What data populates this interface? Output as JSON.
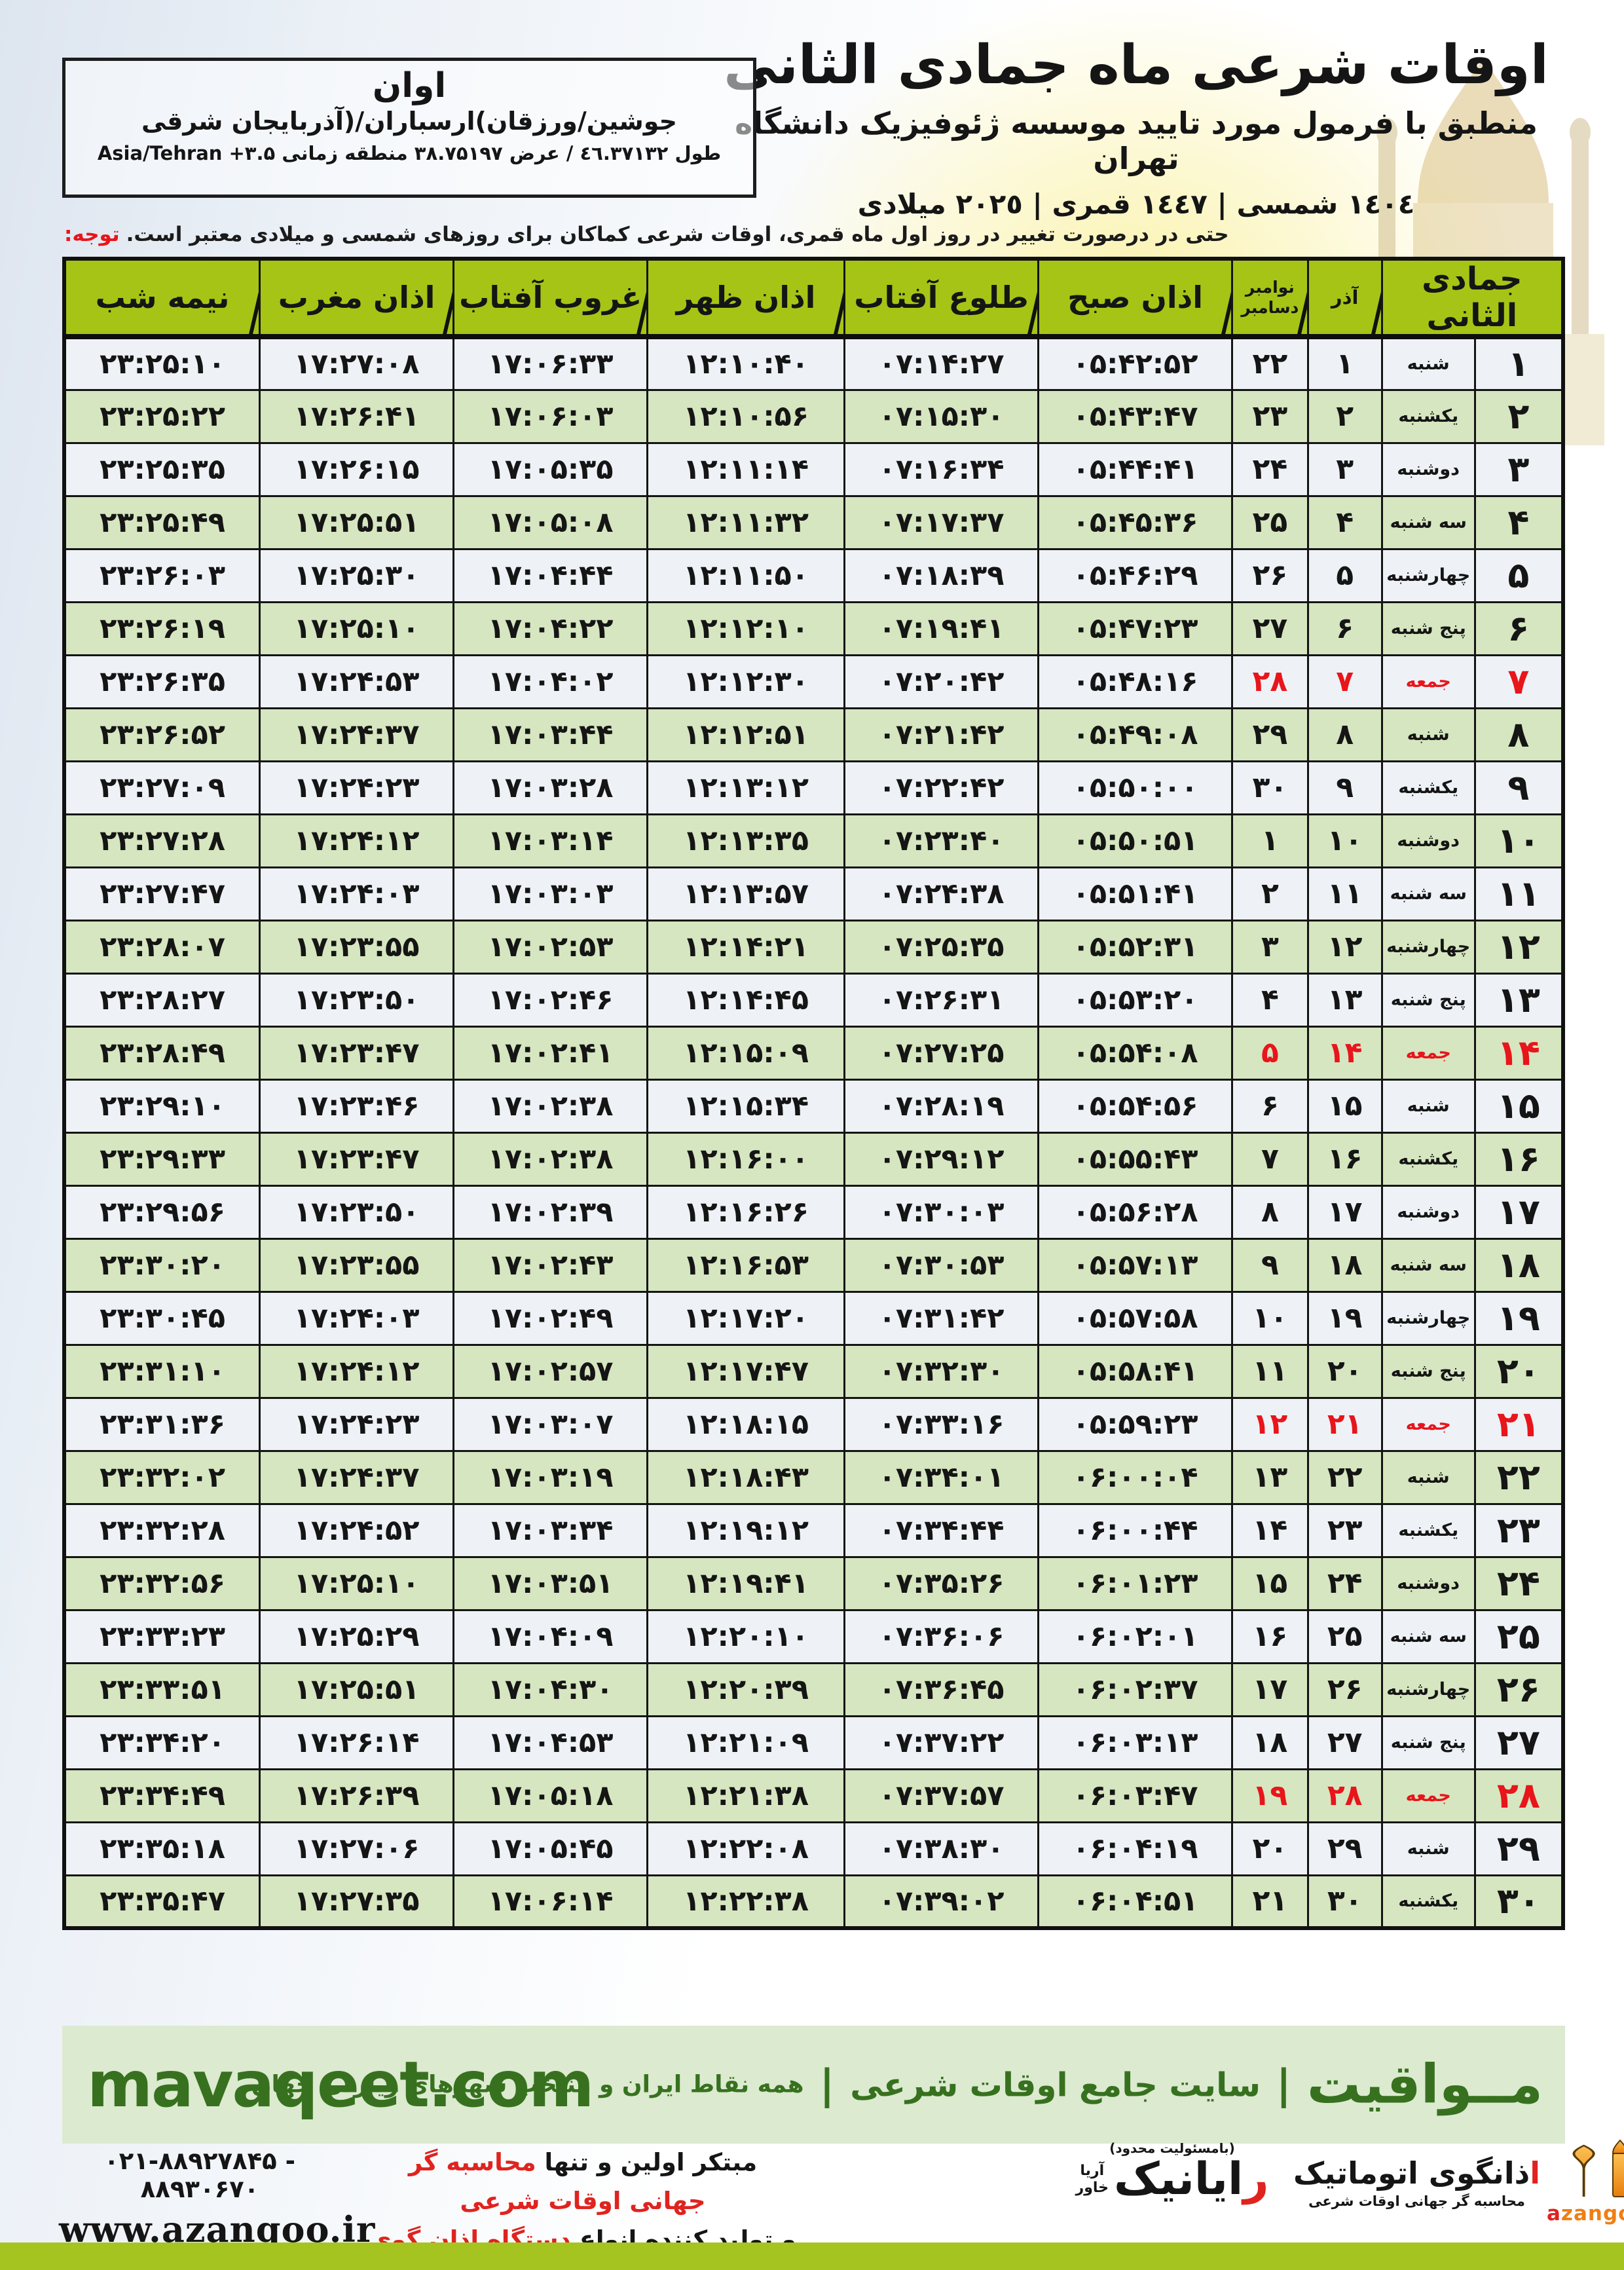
{
  "header": {
    "title": "اوقات شرعی ماه جمادی الثانی",
    "subtitle": "منطبق با فرمول مورد تایید موسسه ژئوفیزیک دانشگاه تهران",
    "calendar_line": "١٤٠٤ شمسی | ١٤٤٧ قمری | ٢٠٢٥ میلادی"
  },
  "location": {
    "city": "اوان",
    "region": "جوشین/ورزقان)ارسباران/(آذربایجان شرقی",
    "coordinates": "طول ٤٦.٣٧١٣٢ / عرض ۳۸.۷۵۱۹۷ منطقه زمانی Asia/Tehran +۳.۵"
  },
  "notice": {
    "label": "توجه:",
    "text": "حتی در درصورت تغییر در روز اول ماه قمری، اوقات شرعی کماکان برای روزهای شمسی و میلادی معتبر است."
  },
  "table": {
    "headers": {
      "month": "جمادی الثانی",
      "azar": "آذر",
      "miladi_top": "نوامبر",
      "miladi_bottom": "دسامبر",
      "fajr": "اذان صبح",
      "sunrise": "طلوع آفتاب",
      "dhuhr": "اذان ظهر",
      "sunset": "غروب آفتاب",
      "maghrib": "اذان مغرب",
      "midnight": "نیمه شب"
    },
    "rows": [
      {
        "day": "۱",
        "weekday": "شنبه",
        "azar": "۱",
        "miladi": "۲۲",
        "fajr": "۰۵:۴۲:۵۲",
        "sunrise": "۰۷:۱۴:۲۷",
        "dhuhr": "۱۲:۱۰:۴۰",
        "sunset": "۱۷:۰۶:۳۳",
        "maghrib": "۱۷:۲۷:۰۸",
        "midnight": "۲۳:۲۵:۱۰",
        "friday": false
      },
      {
        "day": "۲",
        "weekday": "یکشنبه",
        "azar": "۲",
        "miladi": "۲۳",
        "fajr": "۰۵:۴۳:۴۷",
        "sunrise": "۰۷:۱۵:۳۰",
        "dhuhr": "۱۲:۱۰:۵۶",
        "sunset": "۱۷:۰۶:۰۳",
        "maghrib": "۱۷:۲۶:۴۱",
        "midnight": "۲۳:۲۵:۲۲",
        "friday": false
      },
      {
        "day": "۳",
        "weekday": "دوشنبه",
        "azar": "۳",
        "miladi": "۲۴",
        "fajr": "۰۵:۴۴:۴۱",
        "sunrise": "۰۷:۱۶:۳۴",
        "dhuhr": "۱۲:۱۱:۱۴",
        "sunset": "۱۷:۰۵:۳۵",
        "maghrib": "۱۷:۲۶:۱۵",
        "midnight": "۲۳:۲۵:۳۵",
        "friday": false
      },
      {
        "day": "۴",
        "weekday": "سه شنبه",
        "azar": "۴",
        "miladi": "۲۵",
        "fajr": "۰۵:۴۵:۳۶",
        "sunrise": "۰۷:۱۷:۳۷",
        "dhuhr": "۱۲:۱۱:۳۲",
        "sunset": "۱۷:۰۵:۰۸",
        "maghrib": "۱۷:۲۵:۵۱",
        "midnight": "۲۳:۲۵:۴۹",
        "friday": false
      },
      {
        "day": "۵",
        "weekday": "چهارشنبه",
        "azar": "۵",
        "miladi": "۲۶",
        "fajr": "۰۵:۴۶:۲۹",
        "sunrise": "۰۷:۱۸:۳۹",
        "dhuhr": "۱۲:۱۱:۵۰",
        "sunset": "۱۷:۰۴:۴۴",
        "maghrib": "۱۷:۲۵:۳۰",
        "midnight": "۲۳:۲۶:۰۳",
        "friday": false
      },
      {
        "day": "۶",
        "weekday": "پنج شنبه",
        "azar": "۶",
        "miladi": "۲۷",
        "fajr": "۰۵:۴۷:۲۳",
        "sunrise": "۰۷:۱۹:۴۱",
        "dhuhr": "۱۲:۱۲:۱۰",
        "sunset": "۱۷:۰۴:۲۲",
        "maghrib": "۱۷:۲۵:۱۰",
        "midnight": "۲۳:۲۶:۱۹",
        "friday": false
      },
      {
        "day": "۷",
        "weekday": "جمعه",
        "azar": "۷",
        "miladi": "۲۸",
        "fajr": "۰۵:۴۸:۱۶",
        "sunrise": "۰۷:۲۰:۴۲",
        "dhuhr": "۱۲:۱۲:۳۰",
        "sunset": "۱۷:۰۴:۰۲",
        "maghrib": "۱۷:۲۴:۵۳",
        "midnight": "۲۳:۲۶:۳۵",
        "friday": true
      },
      {
        "day": "۸",
        "weekday": "شنبه",
        "azar": "۸",
        "miladi": "۲۹",
        "fajr": "۰۵:۴۹:۰۸",
        "sunrise": "۰۷:۲۱:۴۲",
        "dhuhr": "۱۲:۱۲:۵۱",
        "sunset": "۱۷:۰۳:۴۴",
        "maghrib": "۱۷:۲۴:۳۷",
        "midnight": "۲۳:۲۶:۵۲",
        "friday": false
      },
      {
        "day": "۹",
        "weekday": "یکشنبه",
        "azar": "۹",
        "miladi": "۳۰",
        "fajr": "۰۵:۵۰:۰۰",
        "sunrise": "۰۷:۲۲:۴۲",
        "dhuhr": "۱۲:۱۳:۱۲",
        "sunset": "۱۷:۰۳:۲۸",
        "maghrib": "۱۷:۲۴:۲۳",
        "midnight": "۲۳:۲۷:۰۹",
        "friday": false
      },
      {
        "day": "۱۰",
        "weekday": "دوشنبه",
        "azar": "۱۰",
        "miladi": "۱",
        "fajr": "۰۵:۵۰:۵۱",
        "sunrise": "۰۷:۲۳:۴۰",
        "dhuhr": "۱۲:۱۳:۳۵",
        "sunset": "۱۷:۰۳:۱۴",
        "maghrib": "۱۷:۲۴:۱۲",
        "midnight": "۲۳:۲۷:۲۸",
        "friday": false
      },
      {
        "day": "۱۱",
        "weekday": "سه شنبه",
        "azar": "۱۱",
        "miladi": "۲",
        "fajr": "۰۵:۵۱:۴۱",
        "sunrise": "۰۷:۲۴:۳۸",
        "dhuhr": "۱۲:۱۳:۵۷",
        "sunset": "۱۷:۰۳:۰۳",
        "maghrib": "۱۷:۲۴:۰۳",
        "midnight": "۲۳:۲۷:۴۷",
        "friday": false
      },
      {
        "day": "۱۲",
        "weekday": "چهارشنبه",
        "azar": "۱۲",
        "miladi": "۳",
        "fajr": "۰۵:۵۲:۳۱",
        "sunrise": "۰۷:۲۵:۳۵",
        "dhuhr": "۱۲:۱۴:۲۱",
        "sunset": "۱۷:۰۲:۵۳",
        "maghrib": "۱۷:۲۳:۵۵",
        "midnight": "۲۳:۲۸:۰۷",
        "friday": false
      },
      {
        "day": "۱۳",
        "weekday": "پنج شنبه",
        "azar": "۱۳",
        "miladi": "۴",
        "fajr": "۰۵:۵۳:۲۰",
        "sunrise": "۰۷:۲۶:۳۱",
        "dhuhr": "۱۲:۱۴:۴۵",
        "sunset": "۱۷:۰۲:۴۶",
        "maghrib": "۱۷:۲۳:۵۰",
        "midnight": "۲۳:۲۸:۲۷",
        "friday": false
      },
      {
        "day": "۱۴",
        "weekday": "جمعه",
        "azar": "۱۴",
        "miladi": "۵",
        "fajr": "۰۵:۵۴:۰۸",
        "sunrise": "۰۷:۲۷:۲۵",
        "dhuhr": "۱۲:۱۵:۰۹",
        "sunset": "۱۷:۰۲:۴۱",
        "maghrib": "۱۷:۲۳:۴۷",
        "midnight": "۲۳:۲۸:۴۹",
        "friday": true
      },
      {
        "day": "۱۵",
        "weekday": "شنبه",
        "azar": "۱۵",
        "miladi": "۶",
        "fajr": "۰۵:۵۴:۵۶",
        "sunrise": "۰۷:۲۸:۱۹",
        "dhuhr": "۱۲:۱۵:۳۴",
        "sunset": "۱۷:۰۲:۳۸",
        "maghrib": "۱۷:۲۳:۴۶",
        "midnight": "۲۳:۲۹:۱۰",
        "friday": false
      },
      {
        "day": "۱۶",
        "weekday": "یکشنبه",
        "azar": "۱۶",
        "miladi": "۷",
        "fajr": "۰۵:۵۵:۴۳",
        "sunrise": "۰۷:۲۹:۱۲",
        "dhuhr": "۱۲:۱۶:۰۰",
        "sunset": "۱۷:۰۲:۳۸",
        "maghrib": "۱۷:۲۳:۴۷",
        "midnight": "۲۳:۲۹:۳۳",
        "friday": false
      },
      {
        "day": "۱۷",
        "weekday": "دوشنبه",
        "azar": "۱۷",
        "miladi": "۸",
        "fajr": "۰۵:۵۶:۲۸",
        "sunrise": "۰۷:۳۰:۰۳",
        "dhuhr": "۱۲:۱۶:۲۶",
        "sunset": "۱۷:۰۲:۳۹",
        "maghrib": "۱۷:۲۳:۵۰",
        "midnight": "۲۳:۲۹:۵۶",
        "friday": false
      },
      {
        "day": "۱۸",
        "weekday": "سه شنبه",
        "azar": "۱۸",
        "miladi": "۹",
        "fajr": "۰۵:۵۷:۱۳",
        "sunrise": "۰۷:۳۰:۵۳",
        "dhuhr": "۱۲:۱۶:۵۳",
        "sunset": "۱۷:۰۲:۴۳",
        "maghrib": "۱۷:۲۳:۵۵",
        "midnight": "۲۳:۳۰:۲۰",
        "friday": false
      },
      {
        "day": "۱۹",
        "weekday": "چهارشنبه",
        "azar": "۱۹",
        "miladi": "۱۰",
        "fajr": "۰۵:۵۷:۵۸",
        "sunrise": "۰۷:۳۱:۴۲",
        "dhuhr": "۱۲:۱۷:۲۰",
        "sunset": "۱۷:۰۲:۴۹",
        "maghrib": "۱۷:۲۴:۰۳",
        "midnight": "۲۳:۳۰:۴۵",
        "friday": false
      },
      {
        "day": "۲۰",
        "weekday": "پنج شنبه",
        "azar": "۲۰",
        "miladi": "۱۱",
        "fajr": "۰۵:۵۸:۴۱",
        "sunrise": "۰۷:۳۲:۳۰",
        "dhuhr": "۱۲:۱۷:۴۷",
        "sunset": "۱۷:۰۲:۵۷",
        "maghrib": "۱۷:۲۴:۱۲",
        "midnight": "۲۳:۳۱:۱۰",
        "friday": false
      },
      {
        "day": "۲۱",
        "weekday": "جمعه",
        "azar": "۲۱",
        "miladi": "۱۲",
        "fajr": "۰۵:۵۹:۲۳",
        "sunrise": "۰۷:۳۳:۱۶",
        "dhuhr": "۱۲:۱۸:۱۵",
        "sunset": "۱۷:۰۳:۰۷",
        "maghrib": "۱۷:۲۴:۲۳",
        "midnight": "۲۳:۳۱:۳۶",
        "friday": true
      },
      {
        "day": "۲۲",
        "weekday": "شنبه",
        "azar": "۲۲",
        "miladi": "۱۳",
        "fajr": "۰۶:۰۰:۰۴",
        "sunrise": "۰۷:۳۴:۰۱",
        "dhuhr": "۱۲:۱۸:۴۳",
        "sunset": "۱۷:۰۳:۱۹",
        "maghrib": "۱۷:۲۴:۳۷",
        "midnight": "۲۳:۳۲:۰۲",
        "friday": false
      },
      {
        "day": "۲۳",
        "weekday": "یکشنبه",
        "azar": "۲۳",
        "miladi": "۱۴",
        "fajr": "۰۶:۰۰:۴۴",
        "sunrise": "۰۷:۳۴:۴۴",
        "dhuhr": "۱۲:۱۹:۱۲",
        "sunset": "۱۷:۰۳:۳۴",
        "maghrib": "۱۷:۲۴:۵۲",
        "midnight": "۲۳:۳۲:۲۸",
        "friday": false
      },
      {
        "day": "۲۴",
        "weekday": "دوشنبه",
        "azar": "۲۴",
        "miladi": "۱۵",
        "fajr": "۰۶:۰۱:۲۳",
        "sunrise": "۰۷:۳۵:۲۶",
        "dhuhr": "۱۲:۱۹:۴۱",
        "sunset": "۱۷:۰۳:۵۱",
        "maghrib": "۱۷:۲۵:۱۰",
        "midnight": "۲۳:۳۲:۵۶",
        "friday": false
      },
      {
        "day": "۲۵",
        "weekday": "سه شنبه",
        "azar": "۲۵",
        "miladi": "۱۶",
        "fajr": "۰۶:۰۲:۰۱",
        "sunrise": "۰۷:۳۶:۰۶",
        "dhuhr": "۱۲:۲۰:۱۰",
        "sunset": "۱۷:۰۴:۰۹",
        "maghrib": "۱۷:۲۵:۲۹",
        "midnight": "۲۳:۳۳:۲۳",
        "friday": false
      },
      {
        "day": "۲۶",
        "weekday": "چهارشنبه",
        "azar": "۲۶",
        "miladi": "۱۷",
        "fajr": "۰۶:۰۲:۳۷",
        "sunrise": "۰۷:۳۶:۴۵",
        "dhuhr": "۱۲:۲۰:۳۹",
        "sunset": "۱۷:۰۴:۳۰",
        "maghrib": "۱۷:۲۵:۵۱",
        "midnight": "۲۳:۳۳:۵۱",
        "friday": false
      },
      {
        "day": "۲۷",
        "weekday": "پنج شنبه",
        "azar": "۲۷",
        "miladi": "۱۸",
        "fajr": "۰۶:۰۳:۱۳",
        "sunrise": "۰۷:۳۷:۲۲",
        "dhuhr": "۱۲:۲۱:۰۹",
        "sunset": "۱۷:۰۴:۵۳",
        "maghrib": "۱۷:۲۶:۱۴",
        "midnight": "۲۳:۳۴:۲۰",
        "friday": false
      },
      {
        "day": "۲۸",
        "weekday": "جمعه",
        "azar": "۲۸",
        "miladi": "۱۹",
        "fajr": "۰۶:۰۳:۴۷",
        "sunrise": "۰۷:۳۷:۵۷",
        "dhuhr": "۱۲:۲۱:۳۸",
        "sunset": "۱۷:۰۵:۱۸",
        "maghrib": "۱۷:۲۶:۳۹",
        "midnight": "۲۳:۳۴:۴۹",
        "friday": true
      },
      {
        "day": "۲۹",
        "weekday": "شنبه",
        "azar": "۲۹",
        "miladi": "۲۰",
        "fajr": "۰۶:۰۴:۱۹",
        "sunrise": "۰۷:۳۸:۳۰",
        "dhuhr": "۱۲:۲۲:۰۸",
        "sunset": "۱۷:۰۵:۴۵",
        "maghrib": "۱۷:۲۷:۰۶",
        "midnight": "۲۳:۳۵:۱۸",
        "friday": false
      },
      {
        "day": "۳۰",
        "weekday": "یکشنبه",
        "azar": "۳۰",
        "miladi": "۲۱",
        "fajr": "۰۶:۰۴:۵۱",
        "sunrise": "۰۷:۳۹:۰۲",
        "dhuhr": "۱۲:۲۲:۳۸",
        "sunset": "۱۷:۰۶:۱۴",
        "maghrib": "۱۷:۲۷:۳۵",
        "midnight": "۲۳:۳۵:۴۷",
        "friday": false
      }
    ]
  },
  "banner": {
    "site_url": "mavaqeet.com",
    "brand": "مــواقیت",
    "tagline": "سایت جامع اوقات شرعی",
    "coverage": "همه نقاط ایران و منتخب شهرهای زیارتی جهان",
    "separator": "|"
  },
  "publisher": {
    "phone": "۰۲۱-۸۸۹۲۷۸۴۵ - ۸۸۹۳۰۶۷۰",
    "website": "www.azangoo.ir",
    "promo_line1_black": "مبتکر اولین و تنها",
    "promo_line1_red": "محاسبه گر جهانی اوقات شرعی",
    "promo_line2_black": "و تولید کننده انواع",
    "promo_line2_red": "دستگاه اذان گوی تمام خودکار ماهواره ای",
    "rayanik_note": "(بامسئولیت محدود)",
    "rayanik_initial": "ر",
    "rayanik_rest": "ایانیک",
    "rayanik_sub1": "آریا",
    "rayanik_sub2": "خاور",
    "azangoo_initial": "ا",
    "azangoo_rest": "ذانگوی اتوماتیک",
    "azangoo_sub": "محاسبه گر جهانی اوقات شرعی",
    "azangoo_latin_a": "a",
    "azangoo_latin_rest": "zangoo"
  },
  "colors": {
    "header_green": "#a6c415",
    "row_even_green": "#d6e6c0",
    "row_odd_white": "#eef2f7",
    "friday_red": "#e8151b",
    "band_bg": "#dcead0",
    "band_text": "#37711f",
    "bottom_bar": "#a6c41f",
    "accent_orange": "#f07f13"
  }
}
